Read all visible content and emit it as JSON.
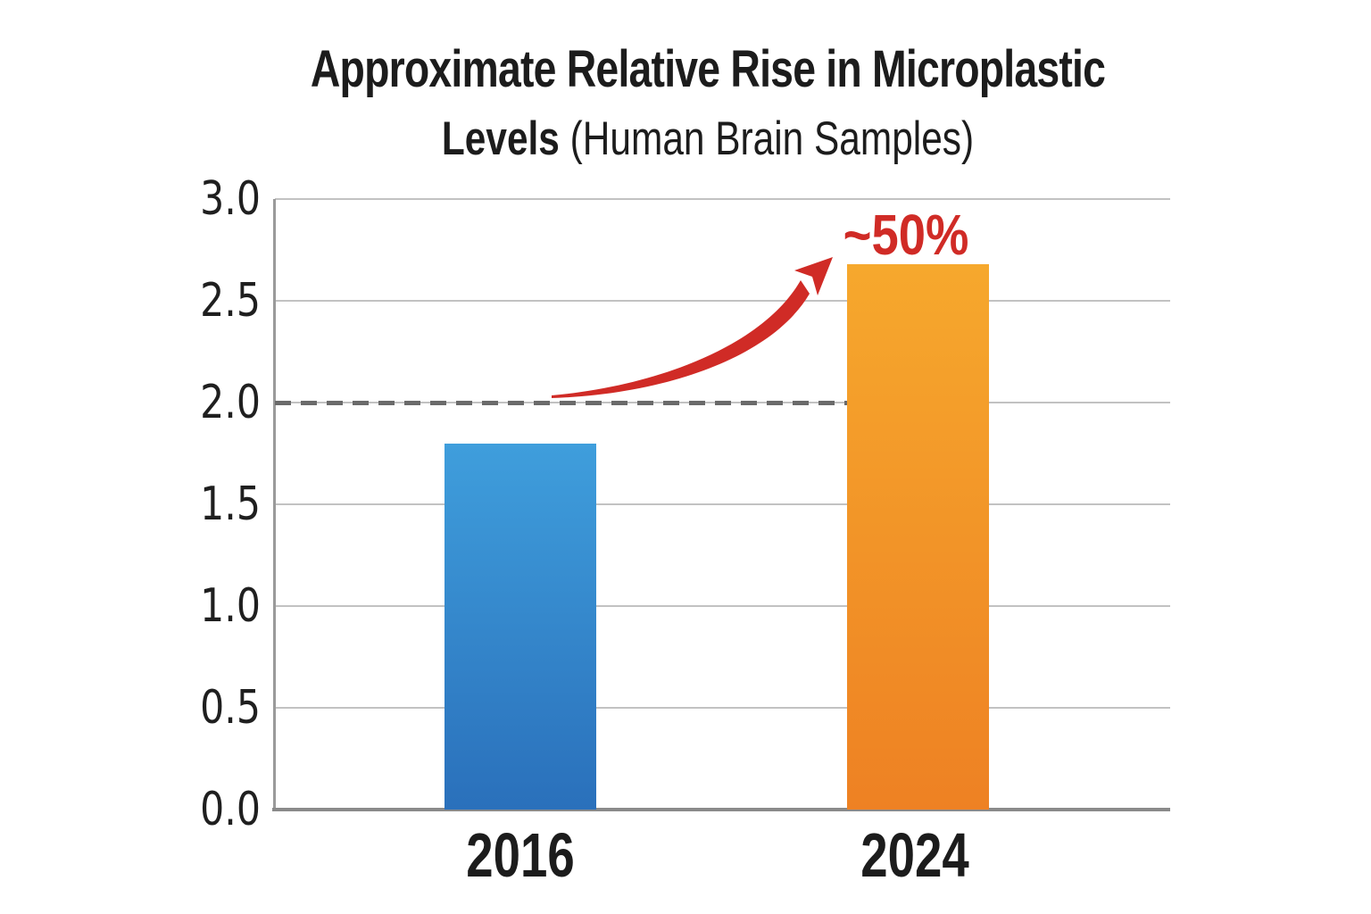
{
  "page": {
    "background": "#ffffff"
  },
  "chart_data": {
    "type": "bar",
    "title_line1": "Approximate Relative Rise in Microplastic",
    "title_line2_bold": "Levels",
    "title_line2_rest": " (Human Brain Samples)",
    "categories": [
      "2016",
      "2024"
    ],
    "values": [
      1.8,
      2.68
    ],
    "ylim": [
      0,
      3
    ],
    "ytick_values": [
      0,
      0.5,
      1,
      1.5,
      2,
      2.5,
      3
    ],
    "yticks": [
      "0.0",
      "0.5",
      "1.0",
      "1.5",
      "2.0",
      "2.5",
      "3.0"
    ],
    "grid": "horizontal",
    "legend": "none",
    "reference_line": {
      "value": 2.0,
      "style": "dashed",
      "color": "#6b6b6b"
    },
    "annotation": {
      "text": "~50%",
      "color": "#d02b26"
    },
    "bar_colors": [
      {
        "top": "#3f9edc",
        "bottom": "#2a70bb"
      },
      {
        "top": "#f6a82d",
        "bottom": "#ee8123"
      }
    ],
    "axis_colors": {
      "gridline": "#c2c2c2",
      "axis_line": "#8a8a8a",
      "left_border": "#9a9a9a",
      "tick_text": "#1f1f1f",
      "title_text": "#1c1c1c"
    }
  }
}
